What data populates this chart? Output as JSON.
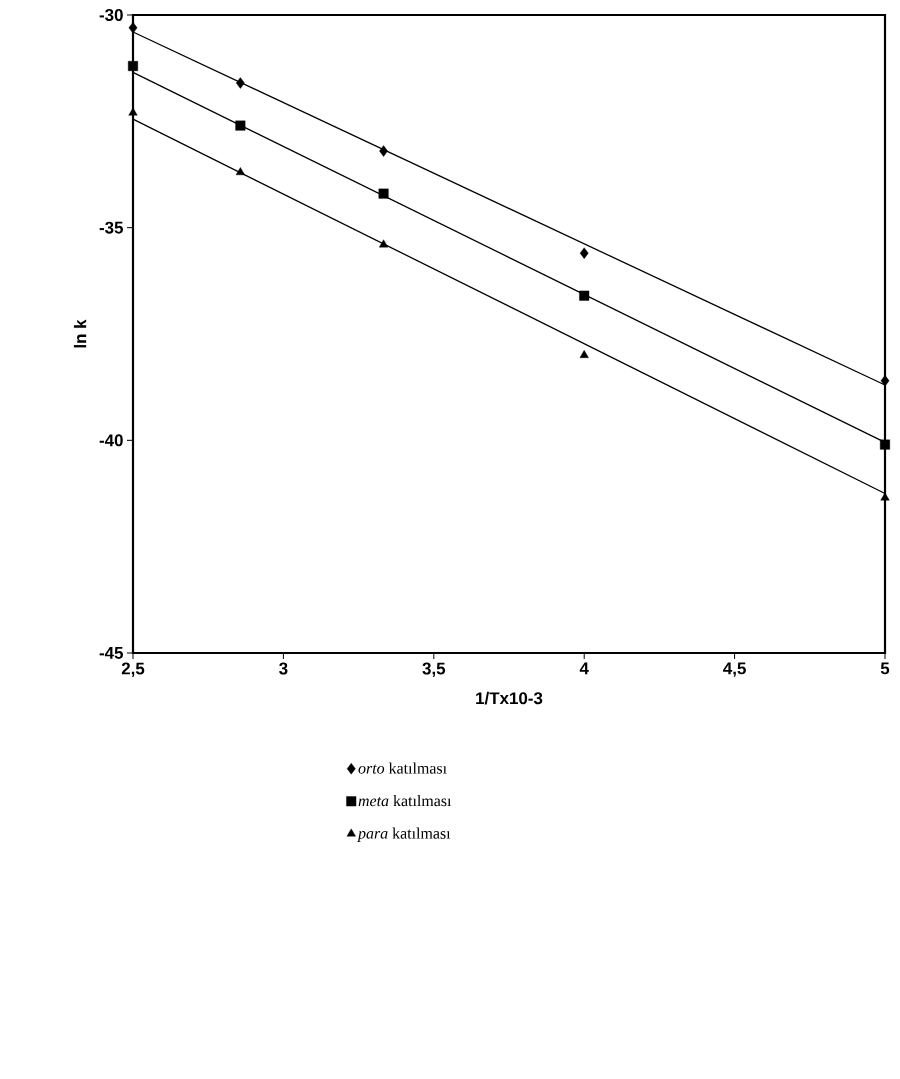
{
  "chart_data": {
    "type": "scatter",
    "xlabel": "1/Tx10-3",
    "ylabel": "ln k",
    "xlim": [
      2.5,
      5
    ],
    "ylim": [
      -45,
      -30
    ],
    "xticks": [
      {
        "value": 2.5,
        "label": "2,5"
      },
      3,
      {
        "value": 3.5,
        "label": "3,5"
      },
      4,
      {
        "value": 4.5,
        "label": "4,5"
      },
      5
    ],
    "yticks": [
      -45,
      -40,
      -35,
      -30
    ],
    "grid": false,
    "legend": "bottom",
    "series": [
      {
        "name": "*orto* katılması",
        "marker": "diamond",
        "color": "#000000",
        "x": [
          2.5,
          2.857,
          3.333,
          4,
          5
        ],
        "values": [
          -30.3,
          -31.6,
          -33.2,
          -35.6,
          -38.6
        ]
      },
      {
        "name": "*meta* katılması",
        "marker": "square",
        "color": "#000000",
        "x": [
          2.5,
          2.857,
          3.333,
          4,
          5
        ],
        "values": [
          -31.2,
          -32.6,
          -34.2,
          -36.6,
          -40.1
        ]
      },
      {
        "name": "*para* katılması",
        "marker": "triangle",
        "color": "#000000",
        "x": [
          2.5,
          2.857,
          3.333,
          4,
          5
        ],
        "values": [
          -32.3,
          -33.7,
          -35.4,
          -38.0,
          -41.35
        ]
      },
      {
        "type": "line",
        "marker": "none",
        "color": "#000000",
        "x": [
          2.5,
          5
        ],
        "values": [
          -30.4,
          -38.7
        ]
      },
      {
        "type": "line",
        "marker": "none",
        "color": "#000000",
        "x": [
          2.5,
          5
        ],
        "values": [
          -31.35,
          -40.05
        ]
      },
      {
        "type": "line",
        "marker": "none",
        "color": "#000000",
        "x": [
          2.5,
          5
        ],
        "values": [
          -32.45,
          -41.25
        ]
      }
    ]
  }
}
